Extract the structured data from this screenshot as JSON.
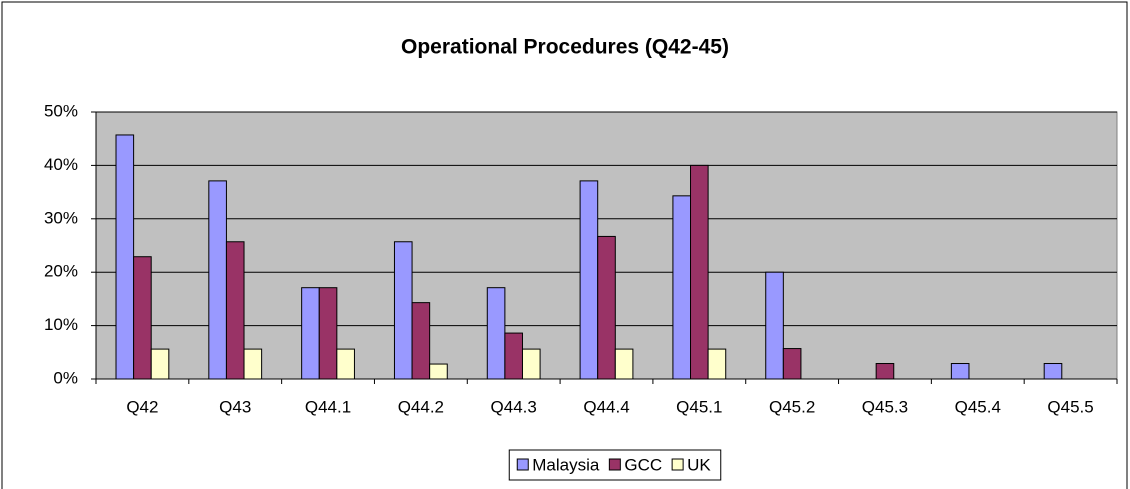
{
  "chart_data": {
    "type": "bar",
    "title": "Operational Procedures (Q42-45)",
    "categories": [
      "Q42",
      "Q43",
      "Q44.1",
      "Q44.2",
      "Q44.3",
      "Q44.4",
      "Q45.1",
      "Q45.2",
      "Q45.3",
      "Q45.4",
      "Q45.5"
    ],
    "series": [
      {
        "name": "Malaysia",
        "color": "#9999ff",
        "values": [
          45.7,
          37.1,
          17.1,
          25.7,
          17.1,
          37.1,
          34.3,
          20,
          0,
          2.9,
          2.9
        ]
      },
      {
        "name": "GCC",
        "color": "#993366",
        "values": [
          22.9,
          25.7,
          17.1,
          14.3,
          8.6,
          26.7,
          40,
          5.7,
          2.9,
          0,
          0
        ]
      },
      {
        "name": "UK",
        "color": "#ffffcc",
        "values": [
          5.6,
          5.6,
          5.6,
          2.8,
          5.6,
          5.6,
          5.6,
          0,
          0,
          0,
          0
        ]
      }
    ],
    "ylim": [
      0,
      50
    ],
    "yticks": [
      {
        "value": 0,
        "label": "0%"
      },
      {
        "value": 10,
        "label": "10%"
      },
      {
        "value": 20,
        "label": "20%"
      },
      {
        "value": 30,
        "label": "30%"
      },
      {
        "value": 40,
        "label": "40%"
      },
      {
        "value": 50,
        "label": "50%"
      }
    ],
    "grid": true,
    "legend": "bottom"
  }
}
